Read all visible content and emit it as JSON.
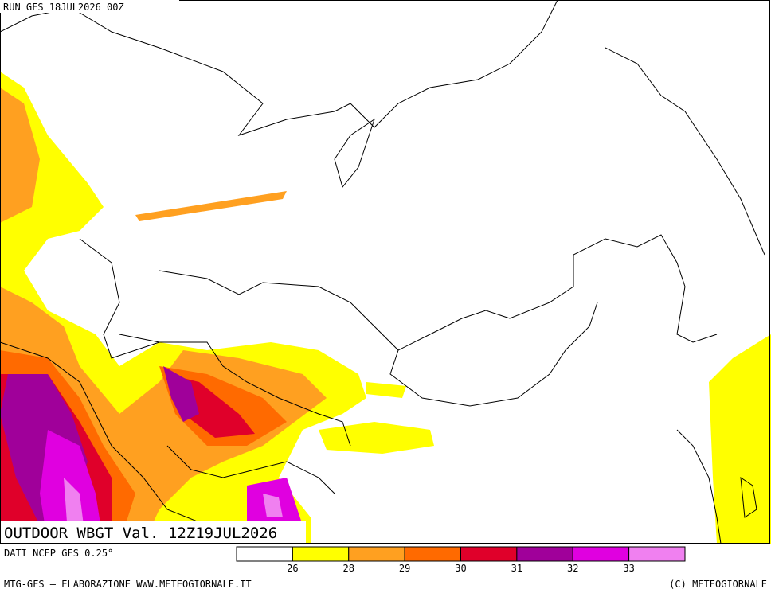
{
  "header": {
    "run": "RUN GFS 18JUL2026 00Z"
  },
  "map": {
    "title": "OUTDOOR WBGT Val. 12Z19JUL2026"
  },
  "source": "DATI NCEP GFS 0.25°",
  "legend": {
    "colors": [
      "#ffffff",
      "#ffff00",
      "#ffa020",
      "#ff6a00",
      "#e0002a",
      "#a0009a",
      "#e000e0",
      "#f080f0"
    ],
    "thresholds": [
      26,
      28,
      29,
      30,
      31,
      32,
      33
    ]
  },
  "footer": {
    "left": "MTG-GFS — ELABORAZIONE WWW.METEOGIORNALE.IT",
    "right": "(C) METEOGIORNALE"
  }
}
